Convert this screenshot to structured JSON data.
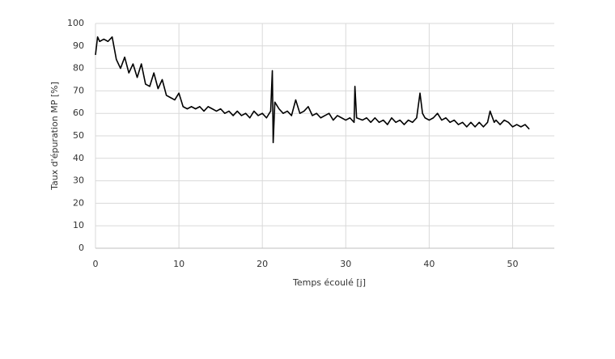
{
  "chart_data": {
    "type": "line",
    "x_label": "Temps écoulé [j]",
    "y_label": "Taux d'épuration MP [%]",
    "x": [
      0,
      0.25,
      0.5,
      1,
      1.5,
      2,
      2.5,
      3,
      3.5,
      4,
      4.5,
      5,
      5.5,
      6,
      6.5,
      7,
      7.5,
      8,
      8.5,
      9,
      9.5,
      10,
      10.5,
      11,
      11.5,
      12,
      12.5,
      13,
      13.5,
      14,
      14.5,
      15,
      15.5,
      16,
      16.5,
      17,
      17.5,
      18,
      18.5,
      19,
      19.5,
      20,
      20.5,
      21,
      21.2,
      21.3,
      21.5,
      22,
      22.5,
      23,
      23.5,
      24,
      24.5,
      25,
      25.5,
      26,
      26.5,
      27,
      27.5,
      28,
      28.5,
      29,
      29.5,
      30,
      30.5,
      31,
      31.1,
      31.3,
      32,
      32.5,
      33,
      33.5,
      34,
      34.5,
      35,
      35.5,
      36,
      36.5,
      37,
      37.5,
      38,
      38.5,
      38.9,
      39.2,
      39.5,
      40,
      40.5,
      41,
      41.5,
      42,
      42.5,
      43,
      43.5,
      44,
      44.5,
      45,
      45.5,
      46,
      46.5,
      47,
      47.3,
      47.8,
      48,
      48.5,
      49,
      49.5,
      50,
      50.5,
      51,
      51.5,
      52
    ],
    "series": [
      {
        "name": "Taux d'épuration MP",
        "color": "#000000",
        "values": [
          86,
          94,
          92,
          93,
          92,
          94,
          84,
          80,
          85,
          78,
          82,
          76,
          82,
          73,
          72,
          78,
          71,
          75,
          68,
          67,
          66,
          69,
          63,
          62,
          63,
          62,
          63,
          61,
          63,
          62,
          61,
          62,
          60,
          61,
          59,
          61,
          59,
          60,
          58,
          61,
          59,
          60,
          58,
          61,
          79,
          47,
          65,
          62,
          60,
          61,
          59,
          66,
          60,
          61,
          63,
          59,
          60,
          58,
          59,
          60,
          57,
          59,
          58,
          57,
          58,
          56,
          72,
          58,
          57,
          58,
          56,
          58,
          56,
          57,
          55,
          58,
          56,
          57,
          55,
          57,
          56,
          58,
          69,
          60,
          58,
          57,
          58,
          60,
          57,
          58,
          56,
          57,
          55,
          56,
          54,
          56,
          54,
          56,
          54,
          56,
          61,
          56,
          57,
          55,
          57,
          56,
          54,
          55,
          54,
          55,
          53
        ]
      }
    ],
    "xlim": [
      0,
      55
    ],
    "ylim": [
      0,
      100
    ],
    "xticks": [
      0,
      10,
      20,
      30,
      40,
      50
    ],
    "yticks": [
      0,
      10,
      20,
      30,
      40,
      50,
      60,
      70,
      80,
      90,
      100
    ],
    "grid": true
  }
}
